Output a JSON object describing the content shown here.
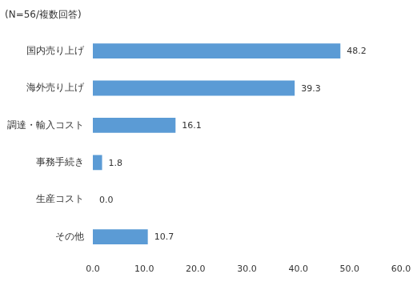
{
  "chart_data": {
    "type": "bar",
    "orientation": "horizontal",
    "subtitle": "(N=56/複数回答)",
    "categories": [
      "国内売り上げ",
      "海外売り上げ",
      "調達・輸入コスト",
      "事務手続き",
      "生産コスト",
      "その他"
    ],
    "values": [
      48.2,
      39.3,
      16.1,
      1.8,
      0.0,
      10.7
    ],
    "value_labels": [
      "48.2",
      "39.3",
      "16.1",
      "1.8",
      "0.0",
      "10.7"
    ],
    "data_labels": true,
    "color": "#5b9bd5",
    "xlim": [
      0,
      60
    ],
    "xticks": [
      {
        "value": 0,
        "label": "0.0"
      },
      {
        "value": 10,
        "label": "10.0"
      },
      {
        "value": 20,
        "label": "20.0"
      },
      {
        "value": 30,
        "label": "30.0"
      },
      {
        "value": 40,
        "label": "40.0"
      },
      {
        "value": 50,
        "label": "50.0"
      },
      {
        "value": 60,
        "label": "60.0"
      }
    ],
    "grid": false
  }
}
